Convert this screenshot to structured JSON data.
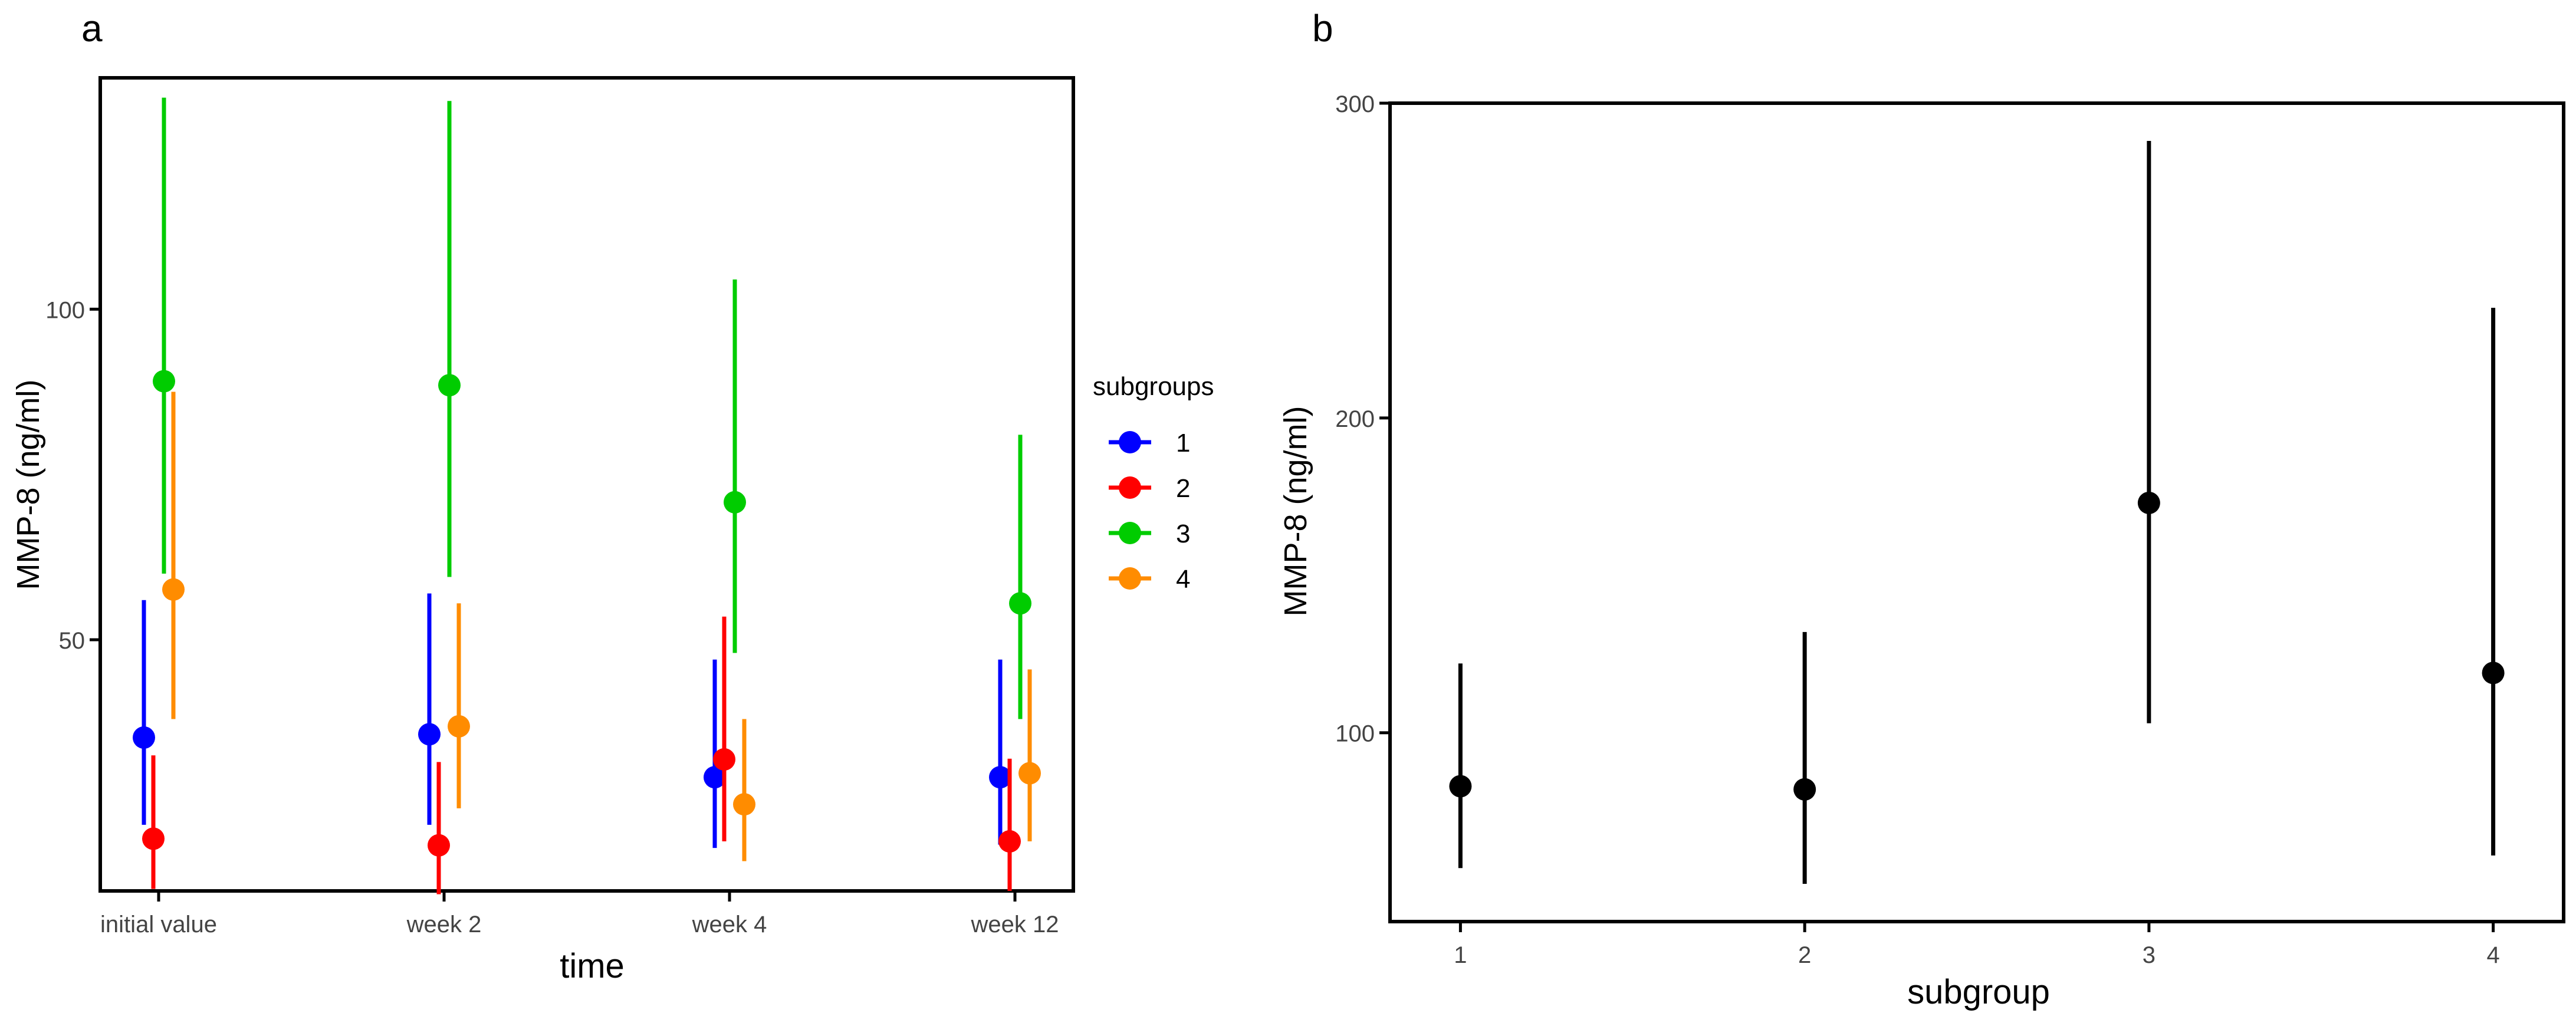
{
  "chart_data": [
    {
      "panel_label": "a",
      "type": "scatter",
      "subtype": "point-range",
      "categories": [
        "initial value",
        "week 2",
        "week 4",
        "week 12"
      ],
      "xlabel": "time",
      "ylabel": "MMP-8 (ng/ml)",
      "yticks": [
        50,
        100
      ],
      "ylim": [
        12,
        135
      ],
      "legend": {
        "title": "subgroups",
        "position": "right"
      },
      "series": [
        {
          "name": "1",
          "color": "#0000ff",
          "points": [
            {
              "y": 35.2,
              "low": 22,
              "high": 56
            },
            {
              "y": 35.7,
              "low": 22,
              "high": 57
            },
            {
              "y": 29.2,
              "low": 18.5,
              "high": 47
            },
            {
              "y": 29.2,
              "low": 19,
              "high": 47
            }
          ]
        },
        {
          "name": "2",
          "color": "#ff0000",
          "points": [
            {
              "y": 19.9,
              "low": 12.3,
              "high": 32.5
            },
            {
              "y": 18.9,
              "low": 11.5,
              "high": 31.5
            },
            {
              "y": 31.9,
              "low": 19.5,
              "high": 53.5
            },
            {
              "y": 19.5,
              "low": 12,
              "high": 32
            }
          ]
        },
        {
          "name": "3",
          "color": "#00cc00",
          "points": [
            {
              "y": 89.1,
              "low": 60,
              "high": 132
            },
            {
              "y": 88.5,
              "low": 59.5,
              "high": 131.5
            },
            {
              "y": 70.8,
              "low": 48,
              "high": 104.5
            },
            {
              "y": 55.5,
              "low": 38,
              "high": 81
            }
          ]
        },
        {
          "name": "4",
          "color": "#ff8c00",
          "points": [
            {
              "y": 57.6,
              "low": 38,
              "high": 87.5
            },
            {
              "y": 36.9,
              "low": 24.5,
              "high": 55.5
            },
            {
              "y": 25.1,
              "low": 16.5,
              "high": 38
            },
            {
              "y": 29.8,
              "low": 19.5,
              "high": 45.5
            }
          ]
        }
      ]
    },
    {
      "panel_label": "b",
      "type": "scatter",
      "subtype": "point-range",
      "categories": [
        "1",
        "2",
        "3",
        "4"
      ],
      "xlabel": "subgroup",
      "ylabel": "MMP-8 (ng/ml)",
      "yticks": [
        100,
        200,
        300
      ],
      "ylim": [
        40,
        300
      ],
      "series": [
        {
          "color": "#000000",
          "points": [
            {
              "y": 83,
              "low": 57,
              "high": 122
            },
            {
              "y": 82,
              "low": 52,
              "high": 132
            },
            {
              "y": 173,
              "low": 103,
              "high": 288
            },
            {
              "y": 119,
              "low": 61,
              "high": 235
            }
          ]
        }
      ]
    }
  ]
}
